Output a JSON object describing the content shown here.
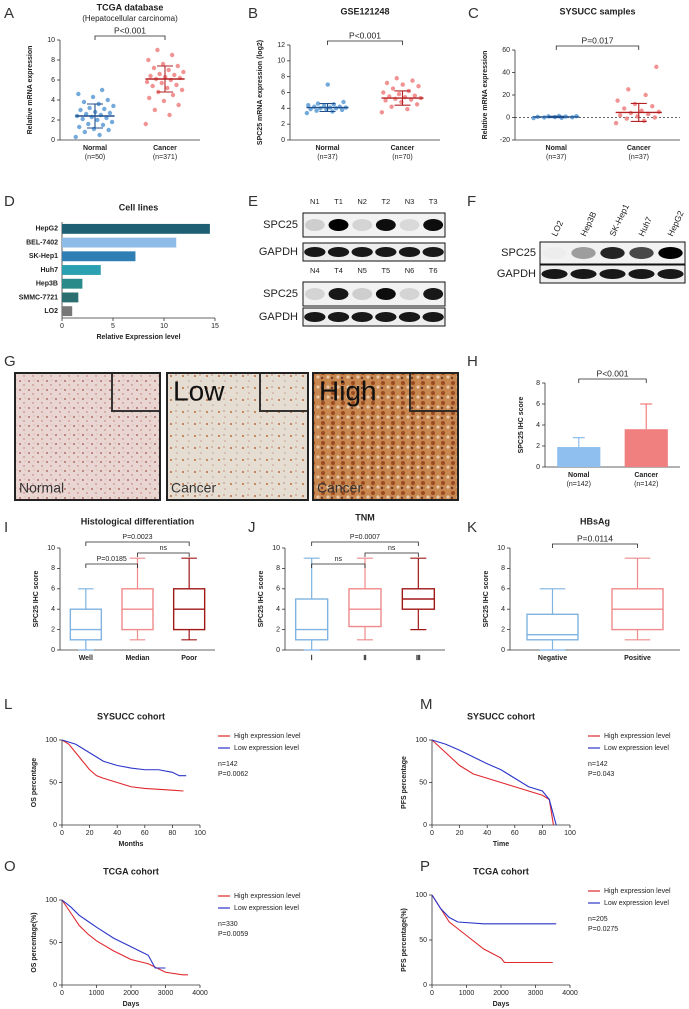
{
  "chart_data": [
    {
      "panel": "A",
      "type": "dot",
      "title": "TCGA database",
      "subtitle": "(Hepatocellular carcinoma)",
      "ylabel": "Relative mRNA expression",
      "ylim": [
        0,
        10
      ],
      "yticks": [
        0,
        2,
        4,
        6,
        8,
        10
      ],
      "groups": [
        {
          "name": "Normal",
          "note": "(n=50)",
          "color": "#5b9bd5",
          "line_color": "#1f4e8c",
          "points": [
            0.3,
            0.5,
            0.8,
            1.0,
            1.1,
            1.3,
            1.5,
            1.6,
            1.8,
            2.0,
            2.1,
            2.2,
            2.3,
            2.4,
            2.5,
            2.6,
            2.7,
            2.8,
            3.0,
            3.1,
            3.2,
            3.4,
            3.6,
            3.8,
            4.0,
            4.3,
            4.6,
            5.0
          ],
          "mean": 2.4,
          "sd": 1.2
        },
        {
          "name": "Cancer",
          "note": "(n=371)",
          "color": "#f08080",
          "line_color": "#b22222",
          "points": [
            1.6,
            2.5,
            3.0,
            3.5,
            3.9,
            4.2,
            4.5,
            4.8,
            5.0,
            5.2,
            5.4,
            5.5,
            5.7,
            5.8,
            6.0,
            6.1,
            6.2,
            6.3,
            6.4,
            6.5,
            6.6,
            6.8,
            7.0,
            7.2,
            7.4,
            7.6,
            8.0,
            8.5,
            9.0
          ],
          "mean": 6.1,
          "sd": 1.3
        }
      ],
      "comparisons": [
        {
          "groups": [
            "Normal",
            "Cancer"
          ],
          "label": "P<0.001"
        }
      ]
    },
    {
      "panel": "B",
      "type": "dot",
      "title": "GSE121248",
      "ylabel": "SPC25 mRNA expression (log2)",
      "ylim": [
        0,
        12
      ],
      "yticks": [
        0,
        2,
        4,
        6,
        8,
        10,
        12
      ],
      "groups": [
        {
          "name": "Normal",
          "note": "(n=37)",
          "color": "#5b9bd5",
          "line_color": "#1f4e8c",
          "points": [
            3.4,
            3.6,
            3.7,
            3.8,
            3.9,
            3.9,
            4.0,
            4.0,
            4.1,
            4.1,
            4.2,
            4.2,
            4.3,
            4.4,
            4.5,
            4.6,
            4.8,
            7.0
          ],
          "mean": 4.1,
          "sd": 0.5
        },
        {
          "name": "Cancer",
          "note": "(n=70)",
          "color": "#f08080",
          "line_color": "#b22222",
          "points": [
            3.5,
            3.9,
            4.2,
            4.5,
            4.8,
            5.0,
            5.1,
            5.2,
            5.3,
            5.4,
            5.5,
            5.6,
            5.8,
            6.0,
            6.2,
            6.5,
            6.8,
            7.0,
            7.2,
            7.5,
            7.8
          ],
          "mean": 5.3,
          "sd": 0.9
        }
      ],
      "comparisons": [
        {
          "groups": [
            "Normal",
            "Cancer"
          ],
          "label": "P<0.001"
        }
      ]
    },
    {
      "panel": "C",
      "type": "dot",
      "title": "SYSUCC samples",
      "ylabel": "Relative mRNA expression",
      "ylim": [
        -20,
        60
      ],
      "yticks": [
        -20,
        0,
        20,
        40,
        60
      ],
      "zero_line": true,
      "groups": [
        {
          "name": "Nomal",
          "note": "(n=37)",
          "color": "#5b9bd5",
          "line_color": "#1f4e8c",
          "points": [
            -0.5,
            -0.3,
            0,
            0.2,
            0.4,
            0.6,
            0.8,
            1,
            1.2,
            1.4
          ],
          "mean": 0.5,
          "sd": 0.6
        },
        {
          "name": "Cancer",
          "note": "(n=37)",
          "color": "#f08080",
          "line_color": "#b22222",
          "points": [
            -5,
            -3,
            -1,
            0,
            1,
            2,
            3,
            4,
            5,
            6,
            8,
            10,
            12,
            15,
            20,
            25,
            45
          ],
          "mean": 4.5,
          "sd": 8
        }
      ],
      "comparisons": [
        {
          "groups": [
            "Nomal",
            "Cancer"
          ],
          "label": "P=0.017"
        }
      ]
    },
    {
      "panel": "D",
      "type": "hbar",
      "title": "Cell lines",
      "xlabel": "Relative Expression level",
      "categories": [
        "HepG2",
        "BEL-7402",
        "SK-Hep1",
        "Huh7",
        "Hep3B",
        "SMMC-7721",
        "LO2"
      ],
      "values": [
        14.5,
        11.2,
        7.2,
        3.8,
        2.0,
        1.6,
        1.0
      ],
      "colors": [
        "#1f5f73",
        "#8fbbe8",
        "#2f7fb5",
        "#2aa0b0",
        "#2a8a8a",
        "#2a6e70",
        "#777777"
      ],
      "xlim": [
        0,
        15
      ],
      "xticks": [
        0,
        5,
        10,
        15
      ]
    },
    {
      "panel": "H",
      "type": "errbar",
      "ylabel": "SPC25 IHC score",
      "ylim": [
        0,
        8
      ],
      "yticks": [
        0,
        2,
        4,
        6,
        8
      ],
      "groups": [
        {
          "name": "Nomal",
          "note": "(n=142)",
          "color": "#8fbfee",
          "value": 1.9,
          "error": 0.9
        },
        {
          "name": "Cancer",
          "note": "(n=142)",
          "color": "#f08080",
          "value": 3.6,
          "error": 2.4
        }
      ],
      "comparisons": [
        {
          "groups": [
            "Nomal",
            "Cancer"
          ],
          "label": "P<0.001"
        }
      ]
    },
    {
      "panel": "I",
      "type": "box",
      "title": "Histological differentiation",
      "ylabel": "SPC25 IHC score",
      "ylim": [
        0,
        10
      ],
      "yticks": [
        0,
        2,
        4,
        6,
        8,
        10
      ],
      "groups": [
        {
          "name": "Well",
          "color": "#7fb3e0",
          "min": 0,
          "q1": 1,
          "median": 2,
          "q3": 4,
          "max": 6
        },
        {
          "name": "Median",
          "color": "#f08a8a",
          "min": 1,
          "q1": 2,
          "median": 4,
          "q3": 6,
          "max": 9
        },
        {
          "name": "Poor",
          "color": "#a01818",
          "min": 1,
          "q1": 2,
          "median": 4,
          "q3": 6,
          "max": 9
        }
      ],
      "comparisons": [
        {
          "groups": [
            "Well",
            "Poor"
          ],
          "label": "P=0.0023"
        },
        {
          "groups": [
            "Median",
            "Poor"
          ],
          "label": "ns"
        },
        {
          "groups": [
            "Well",
            "Median"
          ],
          "label": "P=0.0185"
        }
      ]
    },
    {
      "panel": "J",
      "type": "box",
      "title": "TNM",
      "ylabel": "SPC25 IHC score",
      "ylim": [
        0,
        10
      ],
      "yticks": [
        0,
        2,
        4,
        6,
        8,
        10
      ],
      "groups": [
        {
          "name": "Ⅰ",
          "color": "#7fb3e0",
          "min": 0,
          "q1": 1,
          "median": 2,
          "q3": 5,
          "max": 9
        },
        {
          "name": "Ⅱ",
          "color": "#f08a8a",
          "min": 1,
          "q1": 2.3,
          "median": 4,
          "q3": 6,
          "max": 9
        },
        {
          "name": "Ⅲ",
          "color": "#a01818",
          "min": 2,
          "q1": 4,
          "median": 5,
          "q3": 6,
          "max": 9
        }
      ],
      "comparisons": [
        {
          "groups": [
            "Ⅰ",
            "Ⅲ"
          ],
          "label": "P=0.0007"
        },
        {
          "groups": [
            "Ⅱ",
            "Ⅲ"
          ],
          "label": "ns"
        },
        {
          "groups": [
            "Ⅰ",
            "Ⅱ"
          ],
          "label": "ns"
        }
      ]
    },
    {
      "panel": "K",
      "type": "box",
      "title": "HBsAg",
      "ylabel": "SPC25 IHC score",
      "ylim": [
        0,
        10
      ],
      "yticks": [
        0,
        2,
        4,
        6,
        8,
        10
      ],
      "groups": [
        {
          "name": "Negative",
          "color": "#7fb3e0",
          "min": 0,
          "q1": 1,
          "median": 1.5,
          "q3": 3.5,
          "max": 6
        },
        {
          "name": "Positive",
          "color": "#f08a8a",
          "min": 1,
          "q1": 2,
          "median": 4,
          "q3": 6,
          "max": 9
        }
      ],
      "comparisons": [
        {
          "groups": [
            "Negative",
            "Positive"
          ],
          "label": "P=0.0114"
        }
      ]
    },
    {
      "panel": "L",
      "type": "km",
      "title": "SYSUCC cohort",
      "ylabel": "OS percentage",
      "xlabel": "Months",
      "xlim": [
        0,
        100
      ],
      "xticks": [
        0,
        20,
        40,
        60,
        80,
        100
      ],
      "ylim": [
        0,
        100
      ],
      "yticks": [
        0,
        50,
        100
      ],
      "series": [
        {
          "name": "High expression level",
          "color": "#e0282e",
          "x": [
            0,
            5,
            10,
            15,
            20,
            25,
            30,
            40,
            50,
            60,
            70,
            80,
            88
          ],
          "y": [
            100,
            95,
            85,
            75,
            65,
            58,
            55,
            50,
            45,
            43,
            42,
            41,
            40
          ]
        },
        {
          "name": "Low expression level",
          "color": "#2a35c8",
          "x": [
            0,
            10,
            20,
            30,
            40,
            50,
            60,
            70,
            80,
            85,
            90
          ],
          "y": [
            100,
            95,
            85,
            75,
            70,
            67,
            65,
            65,
            62,
            58,
            58
          ]
        }
      ],
      "notes": [
        "n=142",
        "P=0.0062"
      ]
    },
    {
      "panel": "M",
      "type": "km",
      "title": "SYSUCC cohort",
      "ylabel": "PFS percentage",
      "xlabel": "Time",
      "xlim": [
        0,
        100
      ],
      "xticks": [
        0,
        20,
        40,
        60,
        80,
        100
      ],
      "ylim": [
        0,
        100
      ],
      "yticks": [
        0,
        50,
        100
      ],
      "series": [
        {
          "name": "High expression level",
          "color": "#e0282e",
          "x": [
            0,
            10,
            20,
            30,
            40,
            50,
            60,
            70,
            80,
            85,
            88
          ],
          "y": [
            100,
            85,
            70,
            60,
            55,
            50,
            45,
            40,
            35,
            30,
            0
          ]
        },
        {
          "name": "Low expression level",
          "color": "#2a35c8",
          "x": [
            0,
            10,
            20,
            30,
            40,
            50,
            60,
            70,
            80,
            85,
            90
          ],
          "y": [
            100,
            95,
            88,
            80,
            72,
            65,
            55,
            45,
            40,
            30,
            0
          ]
        }
      ],
      "notes": [
        "n=142",
        "P=0.043"
      ]
    },
    {
      "panel": "O",
      "type": "km",
      "title": "TCGA cohort",
      "ylabel": "OS percentage(%)",
      "xlabel": "Days",
      "xlim": [
        0,
        4000
      ],
      "xticks": [
        0,
        1000,
        2000,
        3000,
        4000
      ],
      "ylim": [
        0,
        100
      ],
      "yticks": [
        0,
        50,
        100
      ],
      "series": [
        {
          "name": "High expression level",
          "color": "#e0282e",
          "x": [
            0,
            250,
            500,
            750,
            1000,
            1500,
            2000,
            2500,
            3000,
            3500,
            3650
          ],
          "y": [
            100,
            85,
            70,
            60,
            52,
            40,
            30,
            25,
            15,
            12,
            12
          ]
        },
        {
          "name": "Low expression level",
          "color": "#2a35c8",
          "x": [
            0,
            250,
            500,
            750,
            1000,
            1500,
            2000,
            2500,
            2700,
            3000
          ],
          "y": [
            100,
            92,
            82,
            75,
            68,
            55,
            45,
            35,
            20,
            20
          ]
        }
      ],
      "notes": [
        "n=330",
        "P=0.0059"
      ]
    },
    {
      "panel": "P",
      "type": "km",
      "title": "TCGA cohort",
      "ylabel": "PFS percentage(%)",
      "xlabel": "Days",
      "xlim": [
        0,
        4000
      ],
      "xticks": [
        0,
        1000,
        2000,
        3000,
        4000
      ],
      "ylim": [
        0,
        100
      ],
      "yticks": [
        0,
        50,
        100
      ],
      "series": [
        {
          "name": "High expression level",
          "color": "#e0282e",
          "x": [
            0,
            250,
            500,
            1000,
            1500,
            2000,
            2100,
            3500
          ],
          "y": [
            100,
            85,
            70,
            55,
            40,
            30,
            25,
            25
          ]
        },
        {
          "name": "Low expression level",
          "color": "#2a35c8",
          "x": [
            0,
            250,
            500,
            750,
            1500,
            2500,
            3600
          ],
          "y": [
            100,
            85,
            75,
            70,
            68,
            68,
            68
          ]
        }
      ],
      "notes": [
        "n=205",
        "P=0.0275"
      ]
    }
  ],
  "blots": [
    {
      "panel": "E",
      "lanes": [
        [
          "N1",
          "T1",
          "N2",
          "T2",
          "N3",
          "T3"
        ],
        [
          "N4",
          "T4",
          "N5",
          "T5",
          "N6",
          "T6"
        ]
      ],
      "rows": [
        "SPC25",
        "GAPDH"
      ]
    },
    {
      "panel": "F",
      "lanes": [
        "LO2",
        "Hep3B",
        "SK-Hep1",
        "Huh7",
        "HepG2"
      ],
      "rows": [
        "SPC25",
        "GAPDH"
      ]
    }
  ],
  "ihc": {
    "panel": "G",
    "images": [
      {
        "caption": "Normal"
      },
      {
        "heading": "Low",
        "caption": "Cancer"
      },
      {
        "heading": "High",
        "caption": "Cancer"
      }
    ]
  }
}
